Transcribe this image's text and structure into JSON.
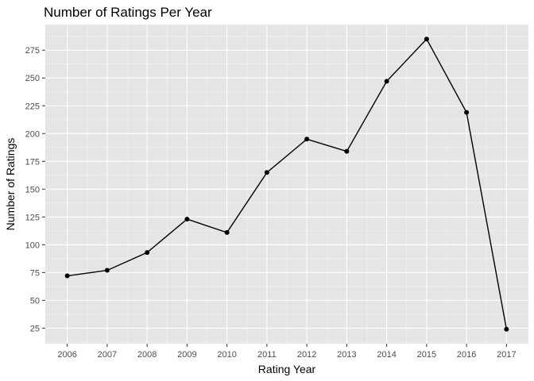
{
  "chart_data": {
    "type": "line",
    "title": "Number of Ratings Per Year",
    "xlabel": "Rating Year",
    "ylabel": "Number of Ratings",
    "x": [
      2006,
      2007,
      2008,
      2009,
      2010,
      2011,
      2012,
      2013,
      2014,
      2015,
      2016,
      2017
    ],
    "x_tick_labels": [
      "2006",
      "2007",
      "2008",
      "2009",
      "2010",
      "2011",
      "2012",
      "2013",
      "2014",
      "2015",
      "2016",
      "2017"
    ],
    "series": [
      {
        "values": [
          72,
          77,
          93,
          123,
          111,
          165,
          195,
          184,
          247,
          285,
          219,
          24
        ]
      }
    ],
    "y_ticks": [
      25,
      50,
      75,
      100,
      125,
      150,
      175,
      200,
      225,
      250,
      275
    ],
    "y_tick_labels": [
      "25",
      "50",
      "75",
      "100",
      "125",
      "150",
      "175",
      "200",
      "225",
      "250",
      "275"
    ],
    "xlim": [
      2005.45,
      2017.55
    ],
    "ylim": [
      11,
      298
    ],
    "grid": true,
    "colors": {
      "panel": "#e5e5e5",
      "grid_major": "#ffffff",
      "grid_minor": "#f2f2f2",
      "line": "#000000",
      "tick": "#333333"
    }
  }
}
